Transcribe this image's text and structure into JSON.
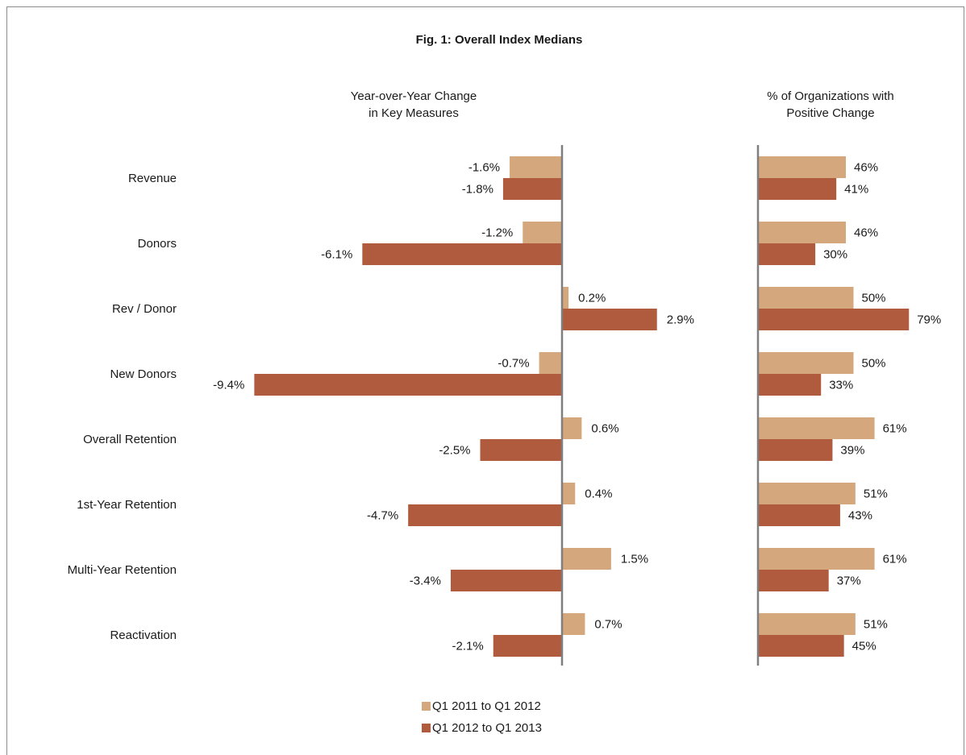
{
  "chart_data": {
    "type": "bar",
    "orientation": "horizontal",
    "title": "Fig. 1: Overall Index Medians",
    "categories": [
      "Revenue",
      "Donors",
      "Rev / Donor",
      "New Donors",
      "Overall Retention",
      "1st-Year Retention",
      "Multi-Year Retention",
      "Reactivation"
    ],
    "legend": {
      "placement": "bottom",
      "entries": [
        {
          "name": "Q1 2011 to Q1 2012",
          "color": "#d4a77d"
        },
        {
          "name": "Q1 2012 to Q1 2013",
          "color": "#b05a3e"
        }
      ]
    },
    "panels": [
      {
        "title": [
          "Year-over-Year Change",
          "in Key Measures"
        ],
        "unit": "%",
        "grid": false,
        "series": [
          {
            "name": "Q1 2011 to Q1 2012",
            "color": "#d4a77d",
            "values": [
              -1.6,
              -1.2,
              0.2,
              -0.7,
              0.6,
              0.4,
              1.5,
              0.7
            ]
          },
          {
            "name": "Q1 2012 to Q1 2013",
            "color": "#b05a3e",
            "values": [
              -1.8,
              -6.1,
              2.9,
              -9.4,
              -2.5,
              -4.7,
              -3.4,
              -2.1
            ]
          }
        ]
      },
      {
        "title": [
          "% of Organizations with",
          "Positive Change"
        ],
        "unit": "%",
        "grid": false,
        "series": [
          {
            "name": "Q1 2011 to Q1 2012",
            "color": "#d4a77d",
            "values": [
              46,
              46,
              50,
              50,
              61,
              51,
              61,
              51
            ]
          },
          {
            "name": "Q1 2012 to Q1 2013",
            "color": "#b05a3e",
            "values": [
              41,
              30,
              79,
              33,
              39,
              43,
              37,
              45
            ]
          }
        ]
      }
    ]
  }
}
